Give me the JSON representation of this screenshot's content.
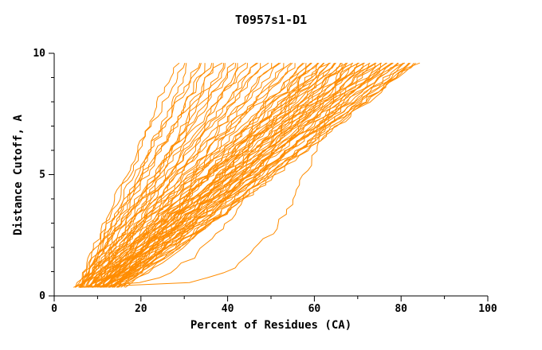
{
  "chart_data": {
    "type": "line",
    "title": "T0957s1-D1",
    "xlabel": "Percent of Residues (CA)",
    "ylabel": "Distance Cutoff, A",
    "xlim": [
      0,
      100
    ],
    "ylim": [
      0,
      10
    ],
    "x_major_ticks": [
      0,
      20,
      40,
      60,
      80,
      100
    ],
    "x_minor_ticks": [
      10,
      30,
      50,
      70,
      90
    ],
    "y_major_ticks": [
      0,
      5,
      10
    ],
    "y_minor_ticks": [
      1,
      2,
      3,
      4,
      6,
      7,
      8,
      9
    ],
    "line_color": "#ff8c00",
    "axis_color": "#000000",
    "background": "#ffffff",
    "y_start": 0.35,
    "y_end": 9.6,
    "curves": [
      [
        5.0,
        28,
        0.95,
        1
      ],
      [
        5.3,
        30,
        1.1,
        2
      ],
      [
        5.1,
        31,
        0.85,
        3
      ],
      [
        5.6,
        33,
        1.0,
        4
      ],
      [
        6.0,
        34,
        1.15,
        5
      ],
      [
        5.2,
        35,
        0.9,
        6
      ],
      [
        6.2,
        36,
        1.05,
        7
      ],
      [
        5.8,
        37,
        0.8,
        8
      ],
      [
        6.5,
        38,
        1.2,
        9
      ],
      [
        5.4,
        39,
        0.95,
        10
      ],
      [
        6.8,
        40,
        1.0,
        11
      ],
      [
        6.1,
        41,
        0.9,
        12
      ],
      [
        7.0,
        42,
        1.1,
        13
      ],
      [
        5.9,
        43,
        0.85,
        14
      ],
      [
        7.2,
        44,
        1.0,
        15
      ],
      [
        6.4,
        45,
        1.15,
        16
      ],
      [
        7.5,
        46,
        0.9,
        17
      ],
      [
        6.6,
        47,
        1.05,
        18
      ],
      [
        7.8,
        48,
        0.95,
        19
      ],
      [
        6.9,
        49,
        1.1,
        20
      ],
      [
        8.0,
        50,
        0.85,
        21
      ],
      [
        7.1,
        51,
        1.0,
        22
      ],
      [
        8.2,
        52,
        1.1,
        23
      ],
      [
        7.4,
        53,
        0.9,
        24
      ],
      [
        8.5,
        54,
        1.05,
        25
      ],
      [
        7.6,
        55,
        0.95,
        26
      ],
      [
        8.8,
        56,
        1.15,
        27
      ],
      [
        7.9,
        57,
        0.85,
        28
      ],
      [
        9.0,
        58,
        1.0,
        29
      ],
      [
        8.1,
        58.5,
        1.1,
        30
      ],
      [
        9.2,
        59,
        0.9,
        31
      ],
      [
        8.4,
        60,
        1.05,
        32
      ],
      [
        9.5,
        60.5,
        0.95,
        33
      ],
      [
        8.6,
        61,
        1.15,
        34
      ],
      [
        9.8,
        61.5,
        0.85,
        35
      ],
      [
        8.9,
        62,
        1.0,
        36
      ],
      [
        10.0,
        62.5,
        1.1,
        37
      ],
      [
        9.1,
        63,
        0.9,
        38
      ],
      [
        10.2,
        63.5,
        1.05,
        39
      ],
      [
        9.4,
        64,
        0.95,
        40
      ],
      [
        10.5,
        64.5,
        1.15,
        41
      ],
      [
        9.6,
        65,
        0.85,
        42
      ],
      [
        10.8,
        65.5,
        1.0,
        43
      ],
      [
        9.9,
        66,
        1.1,
        44
      ],
      [
        11.0,
        66.5,
        0.9,
        45
      ],
      [
        10.1,
        67,
        1.05,
        46
      ],
      [
        11.2,
        67.5,
        0.95,
        47
      ],
      [
        10.4,
        68,
        1.15,
        48
      ],
      [
        11.5,
        68.5,
        0.85,
        49
      ],
      [
        10.6,
        69,
        1.0,
        50
      ],
      [
        11.8,
        69.5,
        1.1,
        51
      ],
      [
        10.9,
        70,
        0.9,
        52
      ],
      [
        12.0,
        70.5,
        1.05,
        53
      ],
      [
        11.1,
        71,
        0.95,
        54
      ],
      [
        12.2,
        71.5,
        1.15,
        55
      ],
      [
        11.4,
        72,
        0.85,
        56
      ],
      [
        12.5,
        72.5,
        1.0,
        57
      ],
      [
        11.6,
        73,
        1.1,
        58
      ],
      [
        12.8,
        73.5,
        0.9,
        59
      ],
      [
        11.9,
        74,
        1.05,
        60
      ],
      [
        13.0,
        74.5,
        0.95,
        61
      ],
      [
        12.1,
        75,
        1.15,
        62
      ],
      [
        13.2,
        75.5,
        0.85,
        63
      ],
      [
        12.4,
        76,
        1.0,
        64
      ],
      [
        13.5,
        76.5,
        1.1,
        65
      ],
      [
        12.6,
        77,
        0.9,
        66
      ],
      [
        13.8,
        77.5,
        1.05,
        67
      ],
      [
        12.9,
        78,
        0.95,
        68
      ],
      [
        14.0,
        78.5,
        1.15,
        69
      ],
      [
        13.1,
        79,
        0.85,
        70
      ],
      [
        14.2,
        79.5,
        1.0,
        71
      ],
      [
        13.4,
        80,
        1.1,
        72
      ],
      [
        14.5,
        80.5,
        0.9,
        73
      ],
      [
        13.6,
        81,
        1.05,
        74
      ],
      [
        14.8,
        81.5,
        0.95,
        75
      ],
      [
        15.0,
        82,
        1.1,
        76
      ],
      [
        14.1,
        82.5,
        0.9,
        77
      ],
      [
        15.5,
        83,
        1.0,
        78
      ],
      [
        16.0,
        83.3,
        0.95,
        79
      ],
      [
        15.2,
        83.5,
        1.05,
        80
      ],
      [
        6.0,
        66,
        0.22,
        81
      ],
      [
        6.2,
        58,
        0.35,
        82
      ]
    ]
  }
}
